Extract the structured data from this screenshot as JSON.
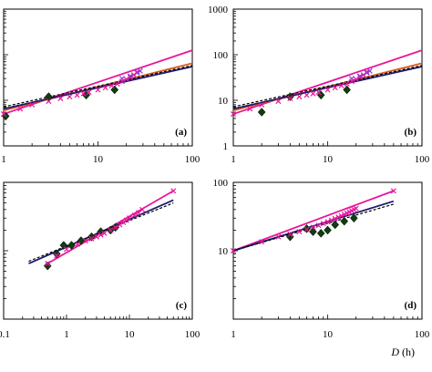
{
  "chart_data": [
    {
      "type": "scatter",
      "panel_label": "(a)",
      "xscale": "log",
      "yscale": "log",
      "xlim": [
        1,
        100
      ],
      "ylim": [
        1,
        1000
      ],
      "x_tick_labels": [
        "1",
        "10",
        "100"
      ],
      "y_tick_labels": [],
      "series": [
        {
          "kind": "points",
          "marker": "diamond",
          "color": "#0f3d0f",
          "x": [
            1.05,
            3,
            7.5,
            15
          ],
          "y": [
            4.5,
            12,
            13,
            17
          ]
        },
        {
          "kind": "points",
          "marker": "x",
          "color": "#e8159a",
          "x": [
            1.0,
            1.5,
            2,
            3,
            4,
            5,
            6,
            7,
            8,
            10,
            12,
            14,
            16,
            18,
            20,
            22,
            24,
            26
          ],
          "y": [
            5.0,
            6.5,
            8.0,
            9.5,
            11,
            12,
            13,
            14,
            15,
            17,
            19,
            21,
            23,
            26,
            29,
            32,
            36,
            42
          ]
        },
        {
          "kind": "points",
          "marker": "x",
          "color": "#8c3fd6",
          "x": [
            18,
            22,
            26,
            28
          ],
          "y": [
            30,
            34,
            40,
            44
          ]
        },
        {
          "kind": "line",
          "style": "solid",
          "color": "#e8159a",
          "x": [
            1,
            100
          ],
          "y": [
            5.0,
            125
          ]
        },
        {
          "kind": "line",
          "style": "solid",
          "color": "#e05a1a",
          "x": [
            1,
            100
          ],
          "y": [
            6.0,
            65
          ]
        },
        {
          "kind": "line",
          "style": "solid",
          "color": "#1a1a6e",
          "x": [
            1,
            100
          ],
          "y": [
            6.5,
            55
          ]
        },
        {
          "kind": "line",
          "style": "dashed",
          "color": "#000000",
          "x": [
            1,
            100
          ],
          "y": [
            7.2,
            58
          ]
        }
      ]
    },
    {
      "type": "scatter",
      "panel_label": "(b)",
      "xscale": "log",
      "yscale": "log",
      "xlim": [
        1,
        100
      ],
      "ylim": [
        1,
        1000
      ],
      "x_tick_labels": [
        "1",
        "10",
        "100"
      ],
      "y_tick_labels": [
        "1",
        "10",
        "100",
        "1000"
      ],
      "series": [
        {
          "kind": "points",
          "marker": "diamond",
          "color": "#0f3d0f",
          "x": [
            2,
            4,
            8.5,
            16
          ],
          "y": [
            5.5,
            12,
            13,
            17
          ]
        },
        {
          "kind": "points",
          "marker": "x",
          "color": "#e8159a",
          "x": [
            1.0,
            1.5,
            2,
            3,
            4,
            5,
            6,
            7,
            8,
            10,
            12,
            14,
            16,
            18,
            20,
            22,
            24,
            26
          ],
          "y": [
            5.0,
            6.5,
            8.0,
            9.5,
            11,
            12,
            13,
            14,
            15,
            17,
            19,
            21,
            23,
            26,
            29,
            32,
            36,
            42
          ]
        },
        {
          "kind": "points",
          "marker": "x",
          "color": "#8c3fd6",
          "x": [
            18,
            22,
            26,
            28
          ],
          "y": [
            30,
            34,
            40,
            44
          ]
        },
        {
          "kind": "line",
          "style": "solid",
          "color": "#e8159a",
          "x": [
            1,
            100
          ],
          "y": [
            5.0,
            125
          ]
        },
        {
          "kind": "line",
          "style": "solid",
          "color": "#e05a1a",
          "x": [
            1,
            100
          ],
          "y": [
            6.0,
            65
          ]
        },
        {
          "kind": "line",
          "style": "solid",
          "color": "#1a1a6e",
          "x": [
            1,
            100
          ],
          "y": [
            6.5,
            55
          ]
        },
        {
          "kind": "line",
          "style": "dashed",
          "color": "#000000",
          "x": [
            1,
            100
          ],
          "y": [
            7.2,
            58
          ]
        }
      ]
    },
    {
      "type": "scatter",
      "panel_label": "(c)",
      "xscale": "log",
      "yscale": "log",
      "xlim": [
        0.1,
        100
      ],
      "ylim": [
        1,
        100
      ],
      "x_tick_labels": [
        "0.1",
        "1",
        "10",
        "100"
      ],
      "y_tick_labels": [],
      "series": [
        {
          "kind": "points",
          "marker": "diamond",
          "color": "#0f3d0f",
          "x": [
            0.5,
            0.7,
            0.9,
            1.2,
            1.7,
            2.5,
            3.5,
            5,
            6
          ],
          "y": [
            6,
            9,
            12,
            12,
            14,
            16,
            19,
            20,
            22
          ]
        },
        {
          "kind": "points",
          "marker": "x",
          "color": "#e8159a",
          "x": [
            0.5,
            0.7,
            1,
            1.5,
            2,
            2.5,
            3,
            3.5,
            4,
            5,
            6,
            7,
            8,
            9,
            10,
            12,
            14,
            16,
            50
          ],
          "y": [
            6.5,
            8.5,
            10.5,
            12.5,
            14,
            15,
            16,
            17,
            18,
            20,
            22,
            24,
            26,
            28,
            30,
            33,
            36,
            40,
            75
          ]
        },
        {
          "kind": "line",
          "style": "solid",
          "color": "#e8159a",
          "x": [
            0.5,
            50
          ],
          "y": [
            6.5,
            75
          ]
        },
        {
          "kind": "line",
          "style": "solid",
          "color": "#1a1a6e",
          "x": [
            0.25,
            50
          ],
          "y": [
            6.5,
            55
          ]
        },
        {
          "kind": "line",
          "style": "dashed",
          "color": "#000000",
          "x": [
            0.25,
            50
          ],
          "y": [
            7.0,
            50
          ]
        }
      ]
    },
    {
      "type": "scatter",
      "panel_label": "(d)",
      "xscale": "log",
      "yscale": "log",
      "xlim": [
        1,
        100
      ],
      "ylim": [
        1,
        100
      ],
      "x_tick_labels": [
        "1",
        "10",
        "100"
      ],
      "y_tick_labels": [
        "10",
        "100"
      ],
      "xlabel": "D (h)",
      "series": [
        {
          "kind": "points",
          "marker": "diamond",
          "color": "#0f3d0f",
          "x": [
            4,
            6,
            7,
            8.5,
            10,
            12,
            15,
            19
          ],
          "y": [
            16,
            21,
            19,
            18,
            20,
            24,
            27,
            30
          ]
        },
        {
          "kind": "points",
          "marker": "x",
          "color": "#e8159a",
          "x": [
            1,
            2,
            3,
            4,
            5,
            6,
            7,
            8,
            9,
            10,
            11,
            12,
            13,
            14,
            15,
            16,
            17,
            18,
            19,
            20,
            50
          ],
          "y": [
            10,
            13.5,
            16,
            17.5,
            19,
            20.5,
            22,
            23.5,
            25,
            26.5,
            28,
            29.5,
            31,
            32.5,
            34,
            35.5,
            37,
            38.5,
            40,
            41.5,
            75
          ]
        },
        {
          "kind": "line",
          "style": "solid",
          "color": "#e8159a",
          "x": [
            1,
            50
          ],
          "y": [
            10,
            75
          ]
        },
        {
          "kind": "line",
          "style": "solid",
          "color": "#1a1a6e",
          "x": [
            1,
            50
          ],
          "y": [
            10,
            53
          ]
        },
        {
          "kind": "line",
          "style": "dashed",
          "color": "#000000",
          "x": [
            1,
            50
          ],
          "y": [
            10,
            48
          ]
        }
      ]
    }
  ]
}
